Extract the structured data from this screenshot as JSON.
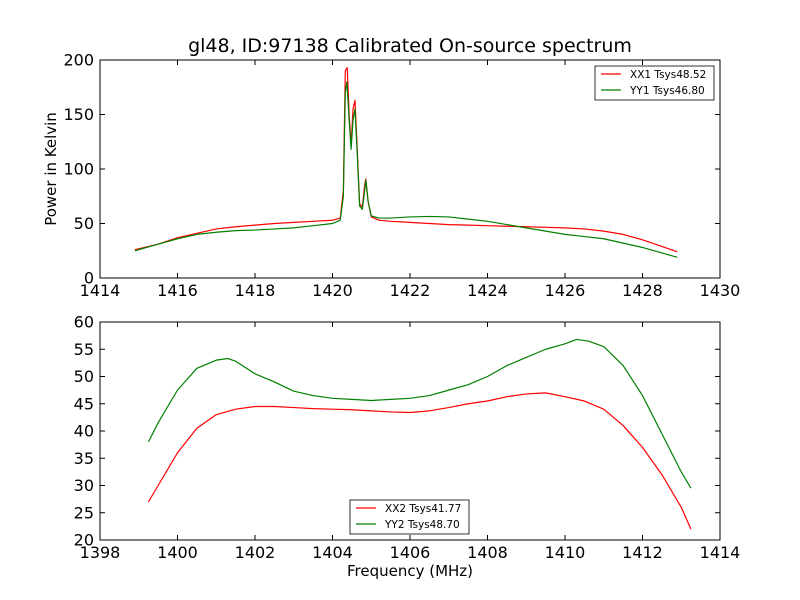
{
  "title": "gl48, ID:97138 Calibrated On-source spectrum",
  "colors": {
    "red": "#ff0000",
    "green": "#007f00"
  },
  "chart_data": [
    {
      "type": "line",
      "ylabel": "Power in Kelvin",
      "xlabel": "",
      "xlim": [
        1414,
        1430
      ],
      "ylim": [
        0,
        200
      ],
      "xticks": [
        1414,
        1416,
        1418,
        1420,
        1422,
        1424,
        1426,
        1428,
        1430
      ],
      "yticks": [
        0,
        50,
        100,
        150,
        200
      ],
      "legend": "top-right",
      "series": [
        {
          "name": "XX1 Tsys48.52",
          "color": "#ff0000",
          "points": [
            [
              1414.9,
              26
            ],
            [
              1415.5,
              31
            ],
            [
              1416,
              37
            ],
            [
              1416.5,
              41
            ],
            [
              1417,
              45
            ],
            [
              1417.5,
              47
            ],
            [
              1418,
              48.5
            ],
            [
              1418.5,
              50
            ],
            [
              1419,
              51
            ],
            [
              1419.5,
              52
            ],
            [
              1420,
              53
            ],
            [
              1420.2,
              55
            ],
            [
              1420.28,
              80
            ],
            [
              1420.33,
              190
            ],
            [
              1420.38,
              193
            ],
            [
              1420.43,
              150
            ],
            [
              1420.48,
              122
            ],
            [
              1420.53,
              155
            ],
            [
              1420.58,
              163
            ],
            [
              1420.63,
              125
            ],
            [
              1420.7,
              68
            ],
            [
              1420.77,
              65
            ],
            [
              1420.83,
              85
            ],
            [
              1420.86,
              91
            ],
            [
              1420.92,
              70
            ],
            [
              1421,
              56
            ],
            [
              1421.2,
              53
            ],
            [
              1421.5,
              52
            ],
            [
              1422,
              51
            ],
            [
              1422.5,
              50
            ],
            [
              1423,
              49
            ],
            [
              1423.5,
              48.5
            ],
            [
              1424,
              48
            ],
            [
              1424.5,
              47.5
            ],
            [
              1425,
              47
            ],
            [
              1425.5,
              46.5
            ],
            [
              1426,
              46
            ],
            [
              1426.5,
              45
            ],
            [
              1427,
              43
            ],
            [
              1427.5,
              40
            ],
            [
              1428,
              35
            ],
            [
              1428.5,
              29
            ],
            [
              1428.9,
              24
            ]
          ]
        },
        {
          "name": "YY1 Tsys46.80",
          "color": "#007f00",
          "points": [
            [
              1414.9,
              25
            ],
            [
              1415.5,
              31
            ],
            [
              1416,
              36
            ],
            [
              1416.5,
              40
            ],
            [
              1417,
              42
            ],
            [
              1417.5,
              43.5
            ],
            [
              1418,
              44
            ],
            [
              1418.5,
              45
            ],
            [
              1419,
              46
            ],
            [
              1419.5,
              48
            ],
            [
              1420,
              50
            ],
            [
              1420.2,
              53
            ],
            [
              1420.28,
              75
            ],
            [
              1420.33,
              170
            ],
            [
              1420.37,
              180
            ],
            [
              1420.43,
              145
            ],
            [
              1420.48,
              118
            ],
            [
              1420.53,
              145
            ],
            [
              1420.58,
              155
            ],
            [
              1420.63,
              120
            ],
            [
              1420.7,
              66
            ],
            [
              1420.77,
              63
            ],
            [
              1420.83,
              80
            ],
            [
              1420.86,
              90
            ],
            [
              1420.92,
              70
            ],
            [
              1421,
              57
            ],
            [
              1421.2,
              55
            ],
            [
              1421.5,
              55
            ],
            [
              1422,
              56
            ],
            [
              1422.5,
              56.5
            ],
            [
              1423,
              56
            ],
            [
              1423.5,
              54
            ],
            [
              1424,
              52
            ],
            [
              1424.5,
              49
            ],
            [
              1425,
              46
            ],
            [
              1425.5,
              43
            ],
            [
              1426,
              40
            ],
            [
              1426.5,
              38
            ],
            [
              1427,
              36
            ],
            [
              1427.5,
              32
            ],
            [
              1428,
              28
            ],
            [
              1428.5,
              23
            ],
            [
              1428.9,
              19
            ]
          ]
        }
      ]
    },
    {
      "type": "line",
      "ylabel": "",
      "xlabel": "Frequency (MHz)",
      "xlim": [
        1398,
        1414
      ],
      "ylim": [
        20,
        60
      ],
      "xticks": [
        1398,
        1400,
        1402,
        1404,
        1406,
        1408,
        1410,
        1412,
        1414
      ],
      "yticks": [
        20,
        25,
        30,
        35,
        40,
        45,
        50,
        55,
        60
      ],
      "legend": "bottom-center",
      "series": [
        {
          "name": "XX2 Tsys41.77",
          "color": "#ff0000",
          "points": [
            [
              1399.25,
              27
            ],
            [
              1399.5,
              30
            ],
            [
              1400,
              36
            ],
            [
              1400.5,
              40.5
            ],
            [
              1401,
              43
            ],
            [
              1401.5,
              44
            ],
            [
              1402,
              44.5
            ],
            [
              1402.5,
              44.5
            ],
            [
              1403,
              44.3
            ],
            [
              1403.5,
              44.1
            ],
            [
              1404,
              44
            ],
            [
              1404.5,
              43.9
            ],
            [
              1405,
              43.7
            ],
            [
              1405.5,
              43.5
            ],
            [
              1406,
              43.4
            ],
            [
              1406.5,
              43.7
            ],
            [
              1407,
              44.3
            ],
            [
              1407.5,
              45
            ],
            [
              1408,
              45.5
            ],
            [
              1408.5,
              46.3
            ],
            [
              1409,
              46.8
            ],
            [
              1409.5,
              47
            ],
            [
              1410,
              46.3
            ],
            [
              1410.5,
              45.5
            ],
            [
              1411,
              44
            ],
            [
              1411.5,
              41
            ],
            [
              1412,
              37
            ],
            [
              1412.5,
              32
            ],
            [
              1413,
              26
            ],
            [
              1413.25,
              22
            ]
          ]
        },
        {
          "name": "YY2 Tsys48.70",
          "color": "#007f00",
          "points": [
            [
              1399.25,
              38
            ],
            [
              1399.5,
              41.5
            ],
            [
              1400,
              47.5
            ],
            [
              1400.5,
              51.5
            ],
            [
              1401,
              53
            ],
            [
              1401.3,
              53.3
            ],
            [
              1401.5,
              52.8
            ],
            [
              1402,
              50.5
            ],
            [
              1402.5,
              49
            ],
            [
              1403,
              47.3
            ],
            [
              1403.5,
              46.5
            ],
            [
              1404,
              46
            ],
            [
              1404.5,
              45.8
            ],
            [
              1405,
              45.6
            ],
            [
              1405.5,
              45.8
            ],
            [
              1406,
              46
            ],
            [
              1406.5,
              46.5
            ],
            [
              1407,
              47.5
            ],
            [
              1407.5,
              48.5
            ],
            [
              1408,
              50
            ],
            [
              1408.5,
              52
            ],
            [
              1409,
              53.5
            ],
            [
              1409.5,
              55
            ],
            [
              1410,
              56
            ],
            [
              1410.3,
              56.8
            ],
            [
              1410.6,
              56.5
            ],
            [
              1411,
              55.5
            ],
            [
              1411.5,
              52
            ],
            [
              1412,
              46.5
            ],
            [
              1412.5,
              39.5
            ],
            [
              1413,
              32.5
            ],
            [
              1413.25,
              29.5
            ]
          ]
        }
      ]
    }
  ]
}
